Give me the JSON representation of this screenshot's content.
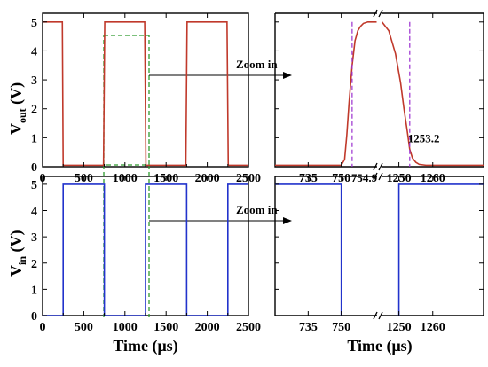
{
  "chart_data": [
    {
      "id": "vout_full",
      "type": "line",
      "ylabel_main": "V",
      "ylabel_sub": "out",
      "ylabel_unit": " (V)",
      "xlim": [
        0,
        2500
      ],
      "ylim": [
        0,
        5.3
      ],
      "xticks": [
        "0",
        "500",
        "1000",
        "1500",
        "2000",
        "2500"
      ],
      "xtick_values": [
        0,
        500,
        1000,
        1500,
        2000,
        2500
      ],
      "yticks": [
        "0",
        "1",
        "2",
        "3",
        "4",
        "5"
      ],
      "ytick_values": [
        0,
        1,
        2,
        3,
        4,
        5
      ],
      "color": "#c0392b",
      "series": [
        {
          "x": [
            0,
            240,
            250,
            740,
            755,
            1240,
            1255,
            1740,
            1755,
            2240,
            2255,
            2500
          ],
          "y": [
            5,
            5,
            0.05,
            0.05,
            5,
            5,
            0.05,
            0.05,
            5,
            5,
            0.05,
            0.05
          ]
        }
      ],
      "annotation": "Zoom in"
    },
    {
      "id": "vout_zoom",
      "type": "line",
      "xlim": [
        720,
        1275
      ],
      "ylim": [
        0,
        5.3
      ],
      "break_at": 1000,
      "xticks": [
        "735",
        "750",
        "1250",
        "1260"
      ],
      "xtick_values": [
        735,
        750,
        1250,
        1260
      ],
      "color": "#c0392b",
      "series": [
        {
          "x": [
            720,
            750,
            751.5,
            752.5,
            753.5,
            754.9,
            756.2,
            757.5,
            758.7,
            760,
            762,
            766,
            1000,
            1245,
            1247,
            1249,
            1250.5,
            1251.5,
            1252.5,
            1253.2,
            1254,
            1255,
            1256,
            1258,
            1275
          ],
          "y": [
            0.05,
            0.05,
            0.25,
            1.1,
            2.2,
            3.5,
            4.35,
            4.7,
            4.85,
            4.95,
            5,
            5,
            5,
            5,
            4.7,
            3.9,
            2.9,
            2,
            1.2,
            0.6,
            0.3,
            0.15,
            0.08,
            0.05,
            0.05
          ]
        }
      ],
      "markers": [
        {
          "x": 754.9,
          "label": "754.9"
        },
        {
          "x": 1253.2,
          "label": "1253.2"
        }
      ]
    },
    {
      "id": "vin_full",
      "type": "line",
      "ylabel_main": "V",
      "ylabel_sub": "in",
      "ylabel_unit": " (V)",
      "xlabel": "Time (μs)",
      "xlim": [
        0,
        2500
      ],
      "ylim": [
        0,
        5.3
      ],
      "xticks": [
        "0",
        "500",
        "1000",
        "1500",
        "2000",
        "2500"
      ],
      "xtick_values": [
        0,
        500,
        1000,
        1500,
        2000,
        2500
      ],
      "yticks": [
        "0",
        "1",
        "2",
        "3",
        "4",
        "5"
      ],
      "ytick_values": [
        0,
        1,
        2,
        3,
        4,
        5
      ],
      "color": "#2233cc",
      "series": [
        {
          "x": [
            0,
            250,
            250,
            750,
            750,
            1250,
            1250,
            1750,
            1750,
            2250,
            2250,
            2500
          ],
          "y": [
            0,
            0,
            5,
            5,
            0,
            0,
            5,
            5,
            0,
            0,
            5,
            5
          ]
        }
      ],
      "annotation": "Zoom in"
    },
    {
      "id": "vin_zoom",
      "type": "line",
      "xlabel": "Time (μs)",
      "xlim": [
        720,
        1275
      ],
      "ylim": [
        0,
        5.3
      ],
      "break_at": 1000,
      "xticks": [
        "735",
        "750",
        "1250",
        "1260"
      ],
      "xtick_values": [
        735,
        750,
        1250,
        1260
      ],
      "color": "#2233cc",
      "series": [
        {
          "x": [
            720,
            750,
            750,
            1000,
            1250,
            1250,
            1275
          ],
          "y": [
            5,
            5,
            0,
            0,
            0,
            5,
            5
          ]
        }
      ]
    }
  ]
}
